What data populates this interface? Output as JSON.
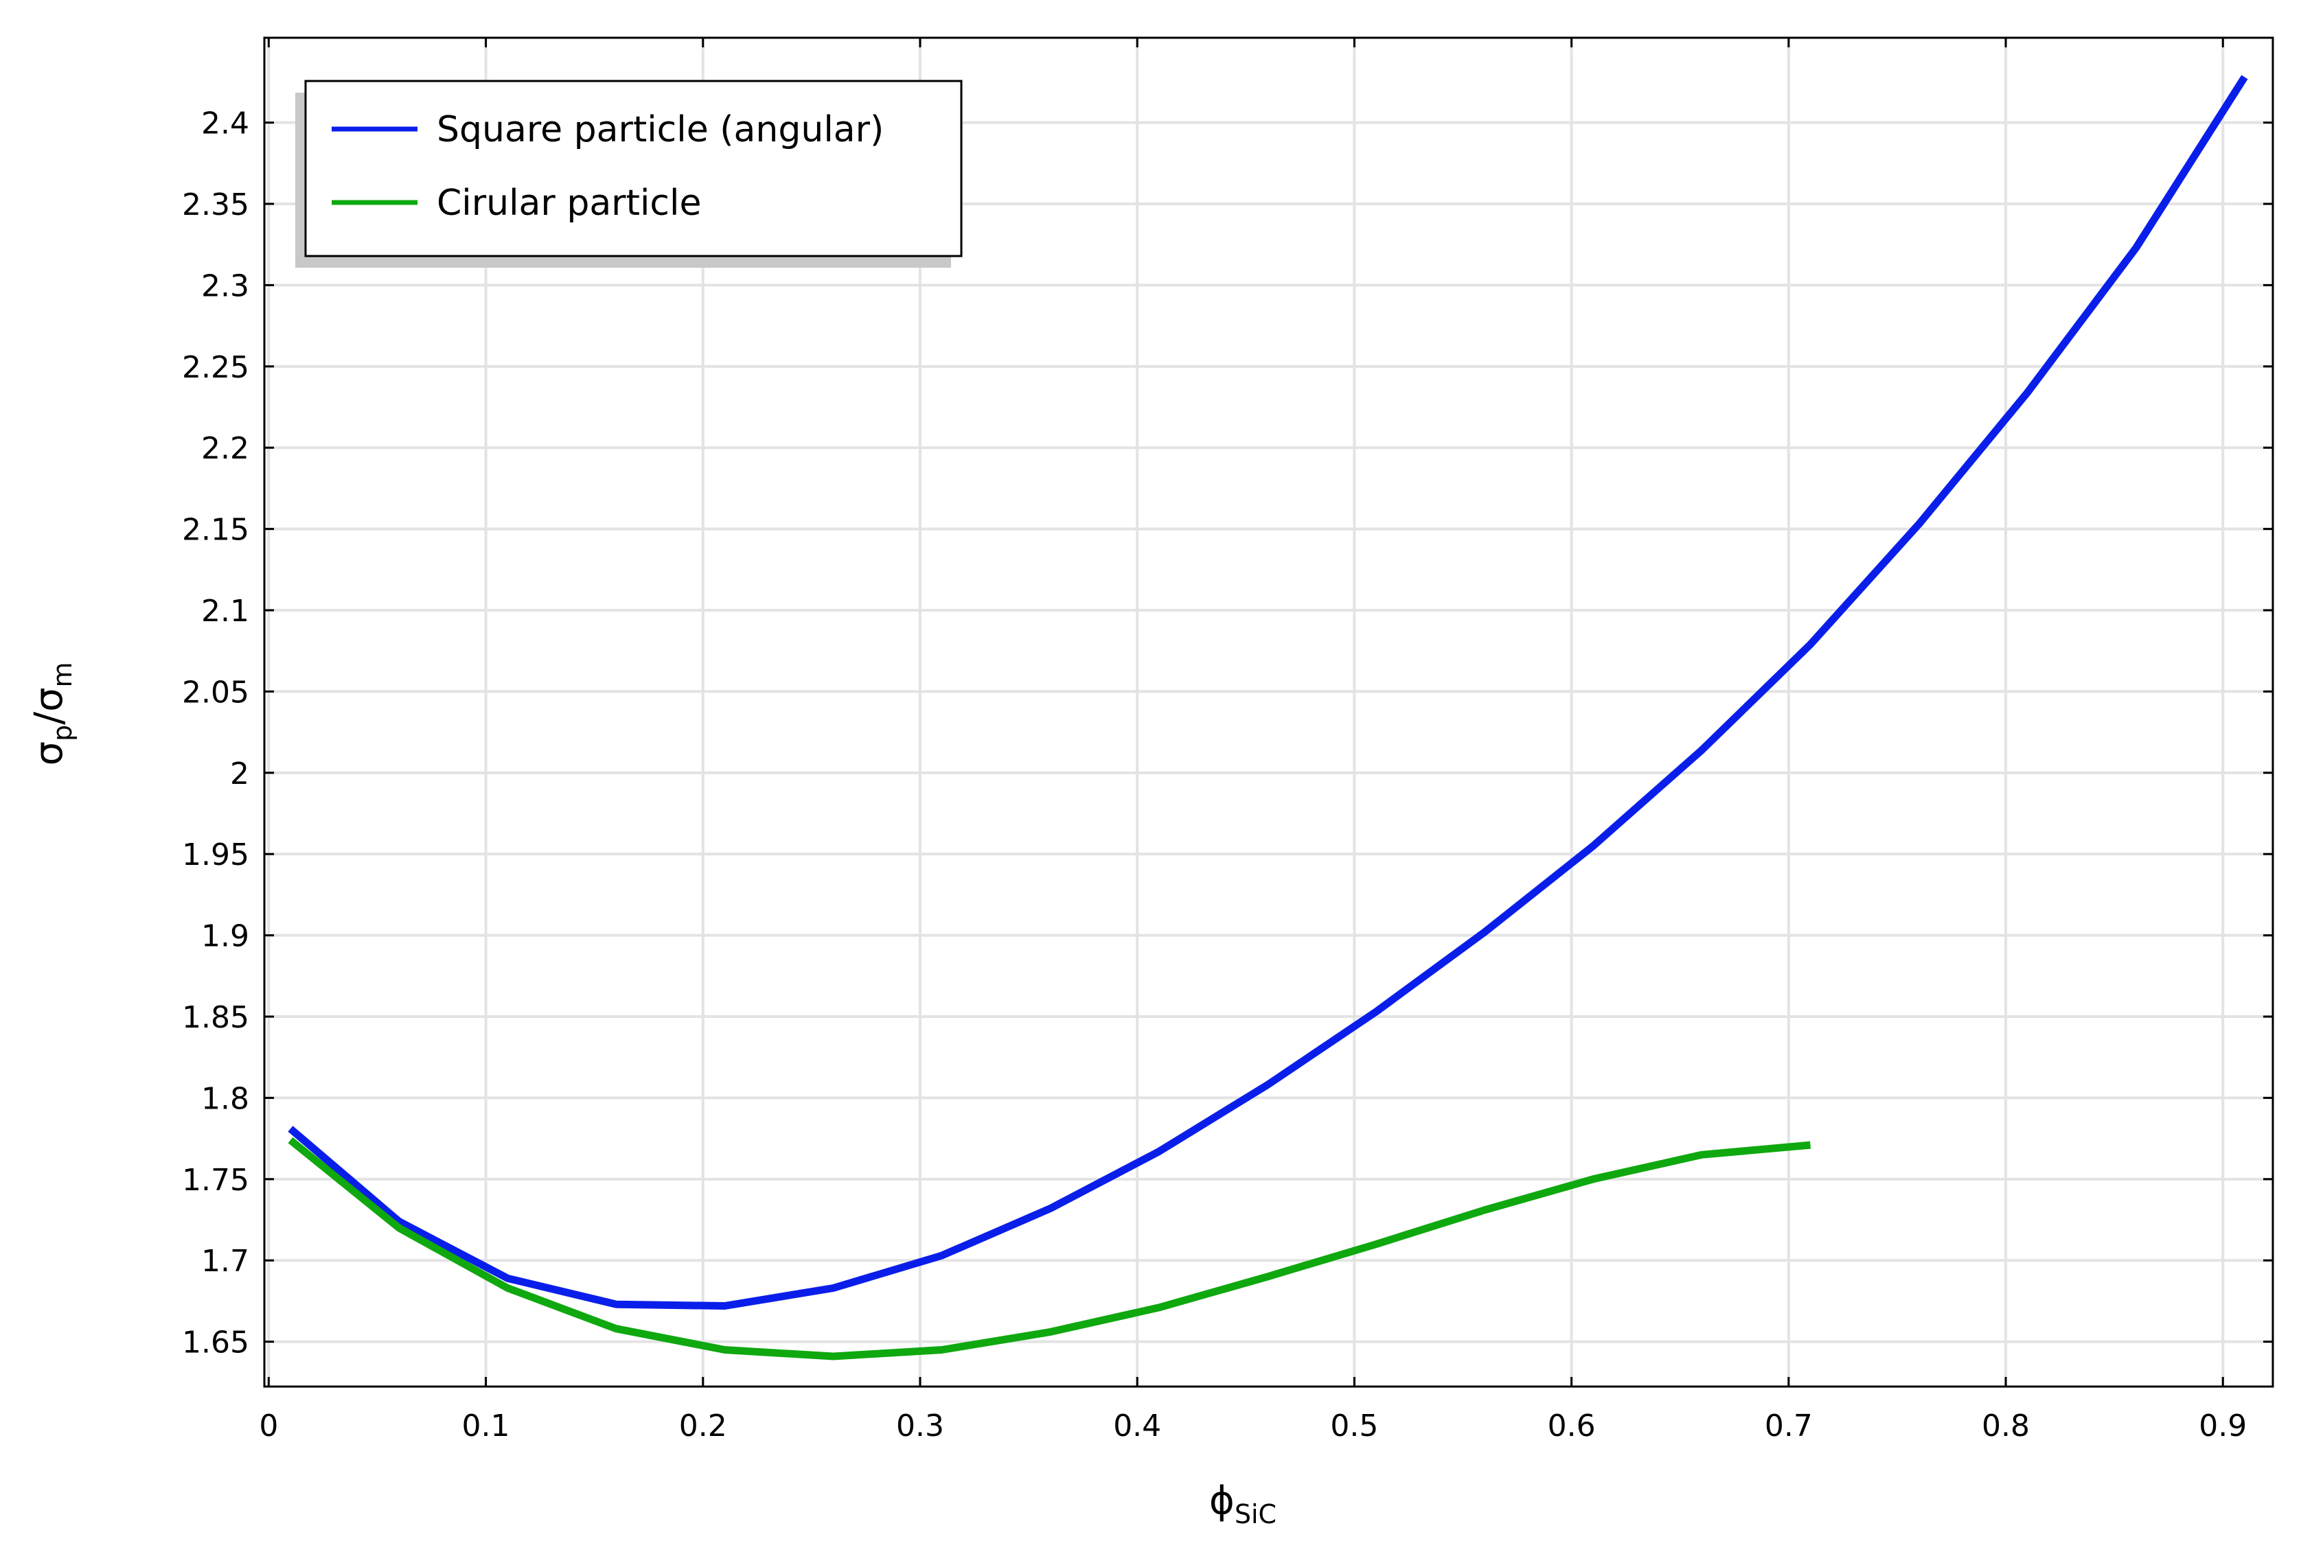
{
  "chart_data": {
    "type": "line",
    "xlabel": {
      "main": "ϕ",
      "sub": "SiC"
    },
    "ylabel": {
      "num": "σ",
      "num_sub": "p",
      "sep": "/",
      "den": "σ",
      "den_sub": "m"
    },
    "xlim": [
      -0.002,
      0.923
    ],
    "ylim": [
      1.6224,
      2.4522
    ],
    "x_ticks": [
      0,
      0.1,
      0.2,
      0.3,
      0.4,
      0.5,
      0.6,
      0.7,
      0.8,
      0.9
    ],
    "x_tick_labels": [
      "0",
      "0.1",
      "0.2",
      "0.3",
      "0.4",
      "0.5",
      "0.6",
      "0.7",
      "0.8",
      "0.9"
    ],
    "y_ticks": [
      1.65,
      1.7,
      1.75,
      1.8,
      1.85,
      1.9,
      1.95,
      2.0,
      2.05,
      2.1,
      2.15,
      2.2,
      2.25,
      2.3,
      2.35,
      2.4
    ],
    "y_tick_labels": [
      "1.65",
      "1.7",
      "1.75",
      "1.8",
      "1.85",
      "1.9",
      "1.95",
      "2",
      "2.05",
      "2.1",
      "2.15",
      "2.2",
      "2.25",
      "2.3",
      "2.35",
      "2.4"
    ],
    "grid": true,
    "legend_position": "top-left",
    "series": [
      {
        "name": "Square particle (angular)",
        "color": "#0a1eea",
        "x": [
          0.01,
          0.06,
          0.11,
          0.16,
          0.21,
          0.26,
          0.31,
          0.36,
          0.41,
          0.46,
          0.51,
          0.56,
          0.61,
          0.66,
          0.71,
          0.76,
          0.81,
          0.86,
          0.91
        ],
        "y": [
          1.781,
          1.724,
          1.689,
          1.673,
          1.672,
          1.683,
          1.703,
          1.732,
          1.767,
          1.808,
          1.853,
          1.902,
          1.955,
          2.014,
          2.079,
          2.153,
          2.234,
          2.323,
          2.428
        ]
      },
      {
        "name": "Cirular particle",
        "color": "#0fa80f",
        "x": [
          0.01,
          0.06,
          0.11,
          0.16,
          0.21,
          0.26,
          0.31,
          0.36,
          0.41,
          0.46,
          0.51,
          0.56,
          0.61,
          0.66,
          0.71
        ],
        "y": [
          1.774,
          1.72,
          1.683,
          1.658,
          1.645,
          1.641,
          1.645,
          1.656,
          1.671,
          1.69,
          1.71,
          1.731,
          1.75,
          1.765,
          1.771
        ]
      }
    ]
  }
}
